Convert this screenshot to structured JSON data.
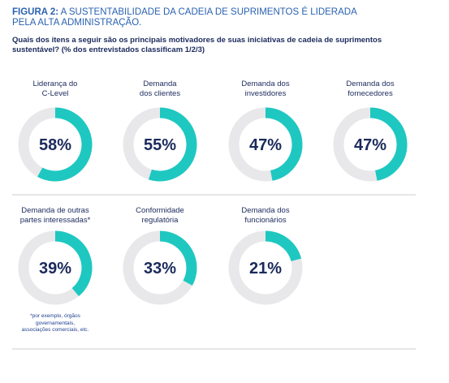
{
  "chart_data": {
    "type": "donut",
    "title_label": "FIGURA 2:",
    "title": "A SUSTENTABILIDADE DA CADEIA DE SUPRIMENTOS É LIDERADA\nPELA ALTA ADMINISTRAÇÃO.",
    "subtitle": "Quais dos itens a seguir são os principais motivadores de suas iniciativas de cadeia de suprimentos\nsustentável? (% dos entrevistados classificam 1/2/3)",
    "categories": [
      "Liderança do\nC-Level",
      "Demanda\ndos clientes",
      "Demanda dos\ninvestidores",
      "Demanda dos\nfornecedores",
      "Demanda de outras\npartes interessadas*",
      "Conformidade\nregulatória",
      "Demanda dos\nfuncionários"
    ],
    "values": [
      58,
      55,
      47,
      47,
      39,
      33,
      21
    ],
    "value_labels": [
      "58%",
      "55%",
      "47%",
      "47%",
      "39%",
      "33%",
      "21%"
    ],
    "color": "#1ec8c1",
    "track_color": "#e8e8ea",
    "footnote": "*por exemplo, órgãos\ngovernamentais,\nassociações comerciais, etc."
  }
}
